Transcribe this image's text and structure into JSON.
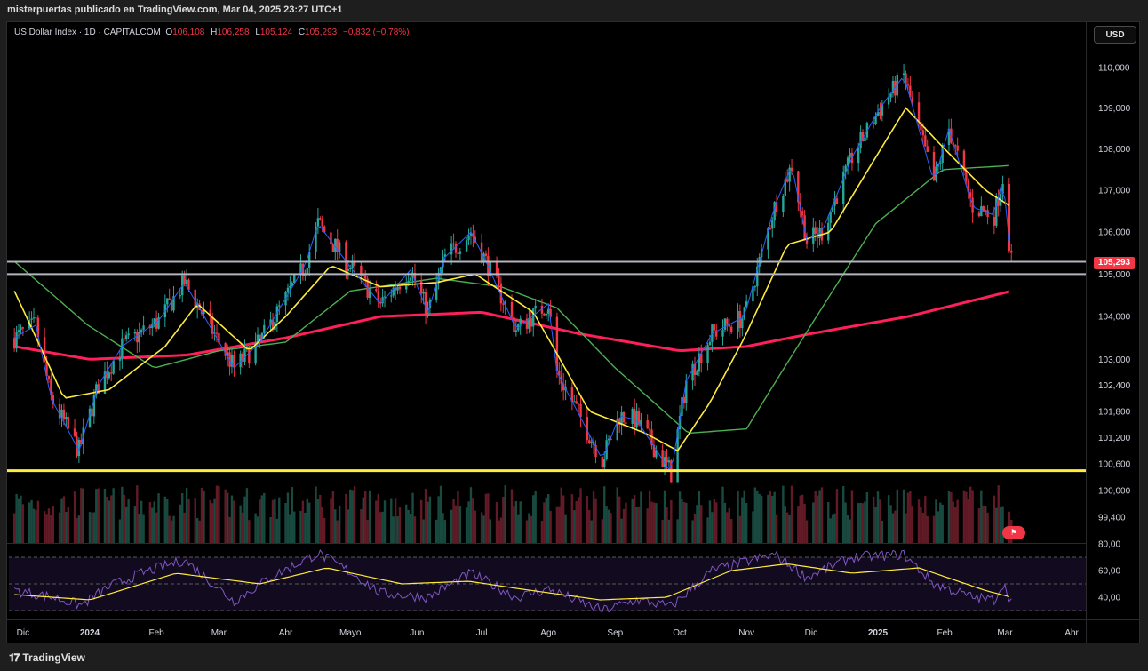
{
  "header": {
    "published": "misterpuertas publicado en TradingView.com, Mar 04, 2025 23:27 UTC+1"
  },
  "legend": {
    "symbol": "US Dollar Index · 1D · CAPITALCOM",
    "o_label": "O",
    "o": "106,108",
    "h_label": "H",
    "h": "106,258",
    "l_label": "L",
    "l": "105,124",
    "c_label": "C",
    "c": "105,293",
    "change": "−0,832 (−0,78%)"
  },
  "currency_button": "USD",
  "last_price": "105,293",
  "footer": {
    "brand": "TradingView"
  },
  "colors": {
    "up": "#26a69a",
    "down": "#f23645",
    "ema_fast": "#2962ff",
    "ema_yellow": "#ffeb3b",
    "ema_green": "#4caf50",
    "ma_200": "#ff1f5a",
    "support_yellow": "#ffeb3b",
    "level_line": "#b2b5be",
    "rsi_line": "#7e57c2",
    "rsi_ma": "#ffeb3b"
  },
  "chart_data": {
    "type": "candlestick",
    "title": "US Dollar Index · 1D · CAPITALCOM",
    "price_axis_ticks": [
      "110,000",
      "109,000",
      "108,000",
      "107,000",
      "106,000",
      "105,000",
      "104,000",
      "103,000",
      "102,400",
      "101,800",
      "101,200",
      "100,600",
      "100,000",
      "99,400"
    ],
    "price_axis_values": [
      110.0,
      109.0,
      108.0,
      107.0,
      106.0,
      105.0,
      104.0,
      103.0,
      102.4,
      101.8,
      101.2,
      100.6,
      100.0,
      99.4
    ],
    "time_axis_ticks": [
      "Dic",
      "2024",
      "Feb",
      "Mar",
      "Abr",
      "Mayo",
      "Jun",
      "Jul",
      "Ago",
      "Sep",
      "Oct",
      "Nov",
      "Dic",
      "2025",
      "Feb",
      "Mar",
      "Abr"
    ],
    "ohlc_last": {
      "open": 106.108,
      "high": 106.258,
      "low": 105.124,
      "close": 105.293,
      "change": -0.832,
      "change_pct": -0.78
    },
    "horizontal_levels": [
      {
        "value": 105.29,
        "color": "#b2b5be"
      },
      {
        "value": 105.0,
        "color": "#b2b5be"
      },
      {
        "value": 100.45,
        "color": "#ffeb3b"
      }
    ],
    "close_points": [
      [
        "2023-11-27",
        103.5
      ],
      [
        "2023-12-07",
        103.8
      ],
      [
        "2023-12-14",
        102.1
      ],
      [
        "2023-12-27",
        100.9
      ],
      [
        "2024-01-05",
        102.4
      ],
      [
        "2024-01-16",
        103.3
      ],
      [
        "2024-02-02",
        103.9
      ],
      [
        "2024-02-14",
        104.8
      ],
      [
        "2024-03-08",
        102.8
      ],
      [
        "2024-03-20",
        103.4
      ],
      [
        "2024-04-10",
        105.2
      ],
      [
        "2024-04-16",
        106.2
      ],
      [
        "2024-05-02",
        105.1
      ],
      [
        "2024-05-15",
        104.3
      ],
      [
        "2024-05-29",
        105.1
      ],
      [
        "2024-06-06",
        104.1
      ],
      [
        "2024-06-14",
        105.4
      ],
      [
        "2024-06-26",
        106.0
      ],
      [
        "2024-07-03",
        105.3
      ],
      [
        "2024-07-17",
        103.7
      ],
      [
        "2024-08-01",
        104.3
      ],
      [
        "2024-08-05",
        102.7
      ],
      [
        "2024-08-26",
        100.7
      ],
      [
        "2024-09-03",
        101.7
      ],
      [
        "2024-09-11",
        101.6
      ],
      [
        "2024-09-27",
        100.4
      ],
      [
        "2024-10-04",
        102.5
      ],
      [
        "2024-10-16",
        103.6
      ],
      [
        "2024-10-31",
        104.0
      ],
      [
        "2024-11-06",
        105.1
      ],
      [
        "2024-11-14",
        106.6
      ],
      [
        "2024-11-22",
        107.6
      ],
      [
        "2024-11-29",
        105.8
      ],
      [
        "2024-12-06",
        106.0
      ],
      [
        "2024-12-20",
        107.8
      ],
      [
        "2025-01-02",
        109.0
      ],
      [
        "2025-01-13",
        109.8
      ],
      [
        "2025-01-27",
        107.2
      ],
      [
        "2025-02-03",
        108.5
      ],
      [
        "2025-02-14",
        106.6
      ],
      [
        "2025-02-24",
        106.4
      ],
      [
        "2025-02-28",
        107.3
      ],
      [
        "2025-03-04",
        105.29
      ]
    ],
    "ema_yellow_points": [
      [
        "2023-11-27",
        104.6
      ],
      [
        "2023-12-20",
        102.1
      ],
      [
        "2024-01-10",
        102.3
      ],
      [
        "2024-02-05",
        103.3
      ],
      [
        "2024-02-20",
        104.3
      ],
      [
        "2024-03-15",
        103.2
      ],
      [
        "2024-04-01",
        104.0
      ],
      [
        "2024-04-22",
        105.2
      ],
      [
        "2024-05-15",
        104.7
      ],
      [
        "2024-06-10",
        104.8
      ],
      [
        "2024-06-28",
        105.0
      ],
      [
        "2024-07-25",
        104.1
      ],
      [
        "2024-08-20",
        101.8
      ],
      [
        "2024-09-15",
        101.3
      ],
      [
        "2024-09-30",
        100.9
      ],
      [
        "2024-10-15",
        102.0
      ],
      [
        "2024-10-31",
        103.5
      ],
      [
        "2024-11-20",
        105.7
      ],
      [
        "2024-12-10",
        106.0
      ],
      [
        "2024-12-31",
        107.8
      ],
      [
        "2025-01-14",
        109.0
      ],
      [
        "2025-02-01",
        108.0
      ],
      [
        "2025-02-20",
        107.0
      ],
      [
        "2025-03-04",
        106.6
      ]
    ],
    "ema_green_points": [
      [
        "2023-11-27",
        105.3
      ],
      [
        "2023-12-31",
        103.8
      ],
      [
        "2024-01-31",
        102.8
      ],
      [
        "2024-03-01",
        103.2
      ],
      [
        "2024-04-01",
        103.4
      ],
      [
        "2024-05-01",
        104.6
      ],
      [
        "2024-06-10",
        104.9
      ],
      [
        "2024-07-10",
        104.7
      ],
      [
        "2024-08-05",
        104.2
      ],
      [
        "2024-09-01",
        102.8
      ],
      [
        "2024-10-05",
        101.3
      ],
      [
        "2024-11-01",
        101.4
      ],
      [
        "2024-12-01",
        103.8
      ],
      [
        "2024-12-31",
        106.2
      ],
      [
        "2025-01-31",
        107.5
      ],
      [
        "2025-03-04",
        107.6
      ]
    ],
    "ma200_points": [
      [
        "2023-11-27",
        103.3
      ],
      [
        "2024-01-01",
        103.0
      ],
      [
        "2024-02-15",
        103.1
      ],
      [
        "2024-04-01",
        103.5
      ],
      [
        "2024-05-15",
        104.0
      ],
      [
        "2024-07-01",
        104.1
      ],
      [
        "2024-08-15",
        103.6
      ],
      [
        "2024-10-01",
        103.2
      ],
      [
        "2024-11-01",
        103.3
      ],
      [
        "2024-12-01",
        103.6
      ],
      [
        "2025-01-15",
        104.0
      ],
      [
        "2025-03-04",
        104.6
      ]
    ],
    "rsi_axis_ticks": [
      "80,00",
      "60,00",
      "40,00"
    ],
    "rsi_axis_values": [
      80,
      60,
      40
    ],
    "rsi_points": [
      [
        "2023-11-27",
        45
      ],
      [
        "2023-12-15",
        40
      ],
      [
        "2023-12-28",
        34
      ],
      [
        "2024-01-10",
        48
      ],
      [
        "2024-01-25",
        58
      ],
      [
        "2024-02-14",
        68
      ],
      [
        "2024-03-08",
        37
      ],
      [
        "2024-03-25",
        55
      ],
      [
        "2024-04-16",
        73
      ],
      [
        "2024-05-02",
        58
      ],
      [
        "2024-05-15",
        43
      ],
      [
        "2024-06-06",
        40
      ],
      [
        "2024-06-26",
        58
      ],
      [
        "2024-07-17",
        40
      ],
      [
        "2024-08-01",
        46
      ],
      [
        "2024-08-26",
        30
      ],
      [
        "2024-09-11",
        38
      ],
      [
        "2024-09-27",
        33
      ],
      [
        "2024-10-16",
        60
      ],
      [
        "2024-11-14",
        72
      ],
      [
        "2024-11-29",
        55
      ],
      [
        "2024-12-20",
        70
      ],
      [
        "2025-01-13",
        72
      ],
      [
        "2025-01-27",
        50
      ],
      [
        "2025-02-14",
        40
      ],
      [
        "2025-02-24",
        38
      ],
      [
        "2025-02-28",
        50
      ],
      [
        "2025-03-04",
        38
      ]
    ],
    "rsi_ma_points": [
      [
        "2023-11-27",
        42
      ],
      [
        "2024-01-01",
        38
      ],
      [
        "2024-02-10",
        58
      ],
      [
        "2024-03-20",
        50
      ],
      [
        "2024-04-20",
        62
      ],
      [
        "2024-05-25",
        50
      ],
      [
        "2024-06-25",
        52
      ],
      [
        "2024-07-20",
        46
      ],
      [
        "2024-08-25",
        38
      ],
      [
        "2024-09-25",
        40
      ],
      [
        "2024-10-25",
        60
      ],
      [
        "2024-11-20",
        65
      ],
      [
        "2024-12-20",
        58
      ],
      [
        "2025-01-20",
        62
      ],
      [
        "2025-02-20",
        45
      ],
      [
        "2025-03-04",
        40
      ]
    ]
  }
}
